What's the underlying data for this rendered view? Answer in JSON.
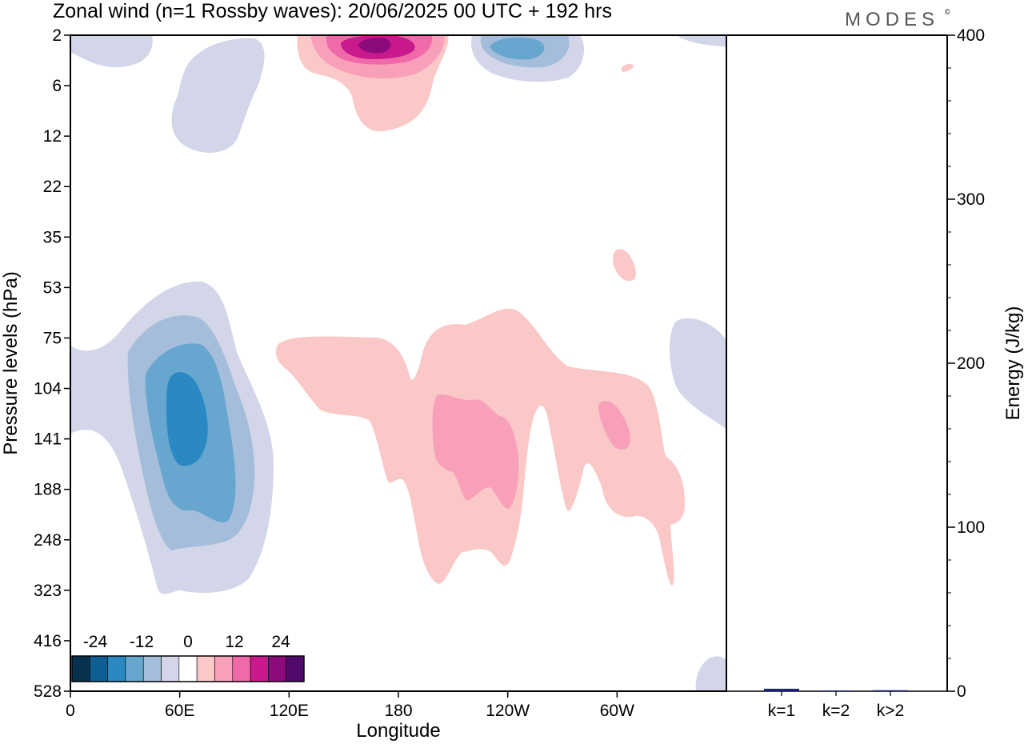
{
  "title": "Zonal wind (n=1 Rossby waves):  20/06/2025  00 UTC  + 192 hrs",
  "brand": "MODES",
  "brand_mark": "©",
  "chart_data": [
    {
      "type": "heatmap",
      "xlabel": "Longitude",
      "ylabel": "Pressure levels (hPa)",
      "x_ticks": [
        "0",
        "60E",
        "120E",
        "180",
        "120W",
        "60W"
      ],
      "x_tick_degrees": [
        0,
        60,
        120,
        180,
        240,
        300
      ],
      "xlim": [
        0,
        360
      ],
      "y_ticks": [
        "2",
        "6",
        "12",
        "22",
        "35",
        "53",
        "75",
        "104",
        "141",
        "188",
        "248",
        "323",
        "416",
        "528"
      ],
      "y_order": "top-to-bottom",
      "colorbar": {
        "labels": [
          "-24",
          "-12",
          "0",
          "12",
          "24"
        ],
        "label_positions": [
          -24,
          -12,
          0,
          12,
          24
        ],
        "min": -30,
        "max": 30,
        "step": 4,
        "colors": [
          "#08304f",
          "#0e5f93",
          "#2a89c2",
          "#67a6cf",
          "#a3bddb",
          "#d3d6e9",
          "#ffffff",
          "#fac8c6",
          "#f89fb9",
          "#f06aa9",
          "#c91a8c",
          "#8c0a7b",
          "#4f0a6b"
        ]
      },
      "regions": [
        {
          "sign": "negative",
          "peak": -14,
          "longitude": 60,
          "pressure": 141,
          "desc": "lower stratosphere negative maximum"
        },
        {
          "sign": "negative",
          "peak": -4,
          "longitude": 80,
          "pressure": 6
        },
        {
          "sign": "negative",
          "peak": -10,
          "longitude": 240,
          "pressure": 2
        },
        {
          "sign": "negative",
          "peak": -4,
          "longitude": 30,
          "pressure": 2
        },
        {
          "sign": "negative",
          "peak": -4,
          "longitude": 355,
          "pressure": 104
        },
        {
          "sign": "positive",
          "peak": 26,
          "longitude": 165,
          "pressure": 2
        },
        {
          "sign": "positive",
          "peak": 6,
          "longitude": 210,
          "pressure": 141
        },
        {
          "sign": "positive",
          "peak": 6,
          "longitude": 300,
          "pressure": 125
        },
        {
          "sign": "positive",
          "peak": 2,
          "longitude": 305,
          "pressure": 35
        }
      ]
    },
    {
      "type": "bar",
      "ylabel": "Energy (J/kg)",
      "categories": [
        "k=1",
        "k=2",
        "k>2"
      ],
      "values": [
        1.5,
        0.4,
        0.6
      ],
      "ylim": [
        0,
        400
      ],
      "y_ticks": [
        "0",
        "100",
        "200",
        "300",
        "400"
      ],
      "bar_color": "#1a237e"
    }
  ]
}
